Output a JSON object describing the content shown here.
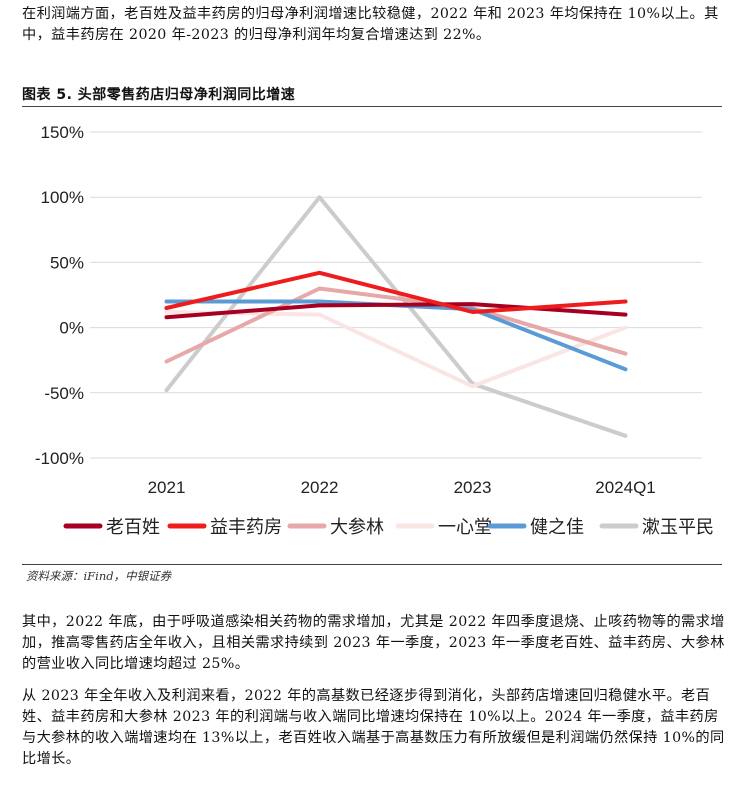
{
  "text": {
    "para1": "在利润端方面，老百姓及益丰药房的归母净利润增速比较稳健，2022 年和 2023 年均保持在 10%以上。其中，益丰药房在 2020 年-2023 的归母净利润年均复合增速达到 22%。",
    "figure_title": "图表 5. 头部零售药店归母净利润同比增速",
    "source": "资料来源：iFind，中银证券",
    "para2": "其中，2022 年底，由于呼吸道感染相关药物的需求增加，尤其是 2022 年四季度退烧、止咳药物等的需求增加，推高零售药店全年收入，且相关需求持续到 2023 年一季度，2023 年一季度老百姓、益丰药房、大参林的营业收入同比增速均超过 25%。",
    "para3": "从 2023 年全年收入及利润来看，2022 年的高基数已经逐步得到消化，头部药店增速回归稳健水平。老百姓、益丰药房和大参林 2023 年的利润端与收入端同比增速均保持在 10%以上。2024 年一季度，益丰药房与大参林的收入端增速均在 13%以上，老百姓收入端基于高基数压力有所放缓但是利润端仍然保持 10%的同比增长。"
  },
  "chart_data": {
    "type": "line",
    "title": "图表 5. 头部零售药店归母净利润同比增速",
    "categories": [
      "2021",
      "2022",
      "2023",
      "2024Q1"
    ],
    "y_ticks": [
      "150%",
      "100%",
      "50%",
      "0%",
      "-50%",
      "-100%"
    ],
    "ylim": [
      -100,
      150
    ],
    "y_unit": "%",
    "grid": true,
    "legend_position": "bottom",
    "series": [
      {
        "name": "老百姓",
        "color": "#a50021",
        "values": [
          8,
          17,
          18,
          10
        ]
      },
      {
        "name": "益丰药房",
        "color": "#ee1c1c",
        "values": [
          15,
          42,
          12,
          20
        ]
      },
      {
        "name": "大参林",
        "color": "#e6a8a8",
        "values": [
          -26,
          30,
          15,
          -20
        ]
      },
      {
        "name": "一心堂",
        "color": "#fbe4e4",
        "values": [
          12,
          10,
          -45,
          0
        ]
      },
      {
        "name": "健之佳",
        "color": "#5b9bd5",
        "values": [
          20,
          20,
          14,
          -32
        ]
      },
      {
        "name": "漱玉平民",
        "color": "#cccccc",
        "values": [
          -48,
          100,
          -43,
          -83
        ]
      }
    ]
  }
}
